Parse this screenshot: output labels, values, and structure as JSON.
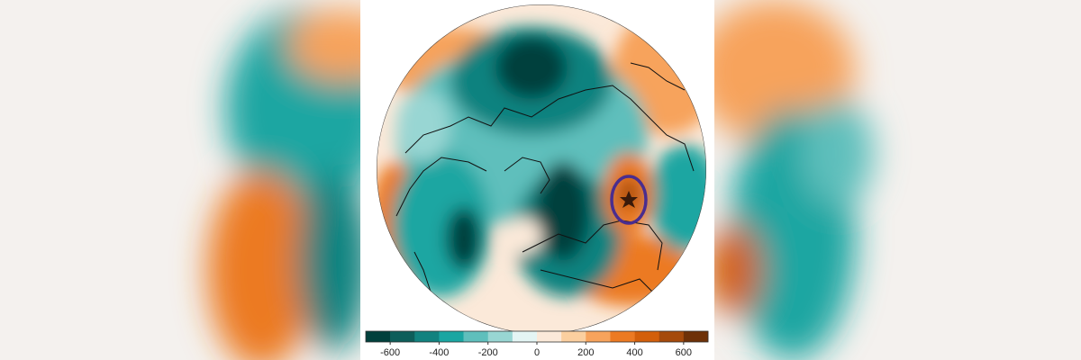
{
  "colorbar": {
    "lim": [
      -700,
      700
    ],
    "ticks": [
      -600,
      -400,
      -200,
      0,
      200,
      400,
      600
    ],
    "colors": [
      "#01403c",
      "#0d5e5a",
      "#11827f",
      "#1aa6a2",
      "#5fbfbc",
      "#98d6d3",
      "#e4f5f4",
      "#fbe9d9",
      "#fbcf9f",
      "#f7a35c",
      "#ec7a22",
      "#d35f0a",
      "#a54a0b",
      "#6e3108"
    ]
  }
}
